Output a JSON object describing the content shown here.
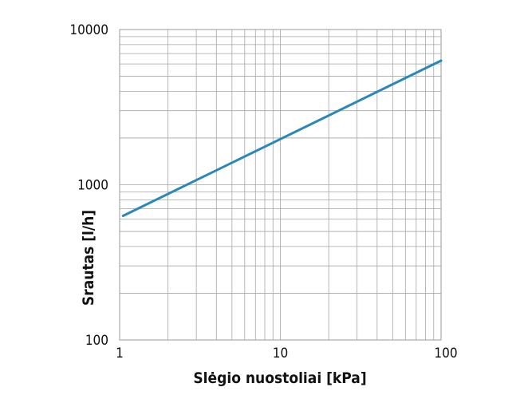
{
  "chart_data": {
    "type": "line",
    "title": "",
    "xlabel": "Slėgio nuostoliai [kPa]",
    "ylabel": "Srautas [l/h]",
    "xscale": "log",
    "yscale": "log",
    "xlim": [
      1,
      100
    ],
    "ylim": [
      100,
      10000
    ],
    "x_ticks": [
      "1",
      "10",
      "100"
    ],
    "y_ticks": [
      "100",
      "1000",
      "10000"
    ],
    "grid": true,
    "series": [
      {
        "color": "#2a88b8",
        "x": [
          1.05,
          100
        ],
        "y": [
          630,
          6300
        ]
      }
    ]
  }
}
